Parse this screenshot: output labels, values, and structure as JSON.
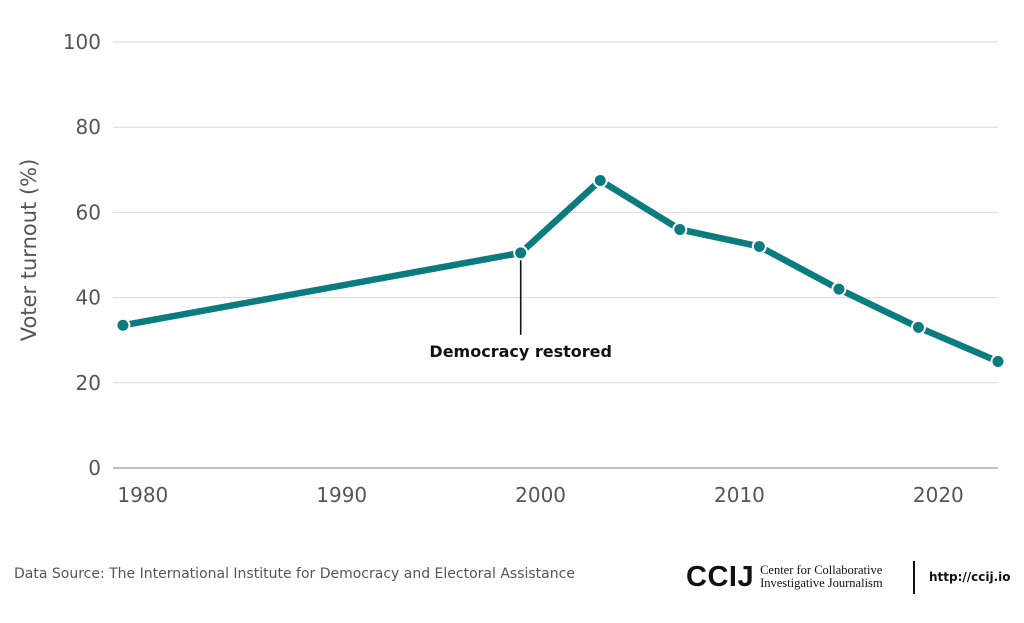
{
  "chart_data": {
    "type": "line",
    "title": "",
    "xlabel": "",
    "ylabel": "Voter turnout (%)",
    "xlim": [
      1978.5,
      2023
    ],
    "ylim": [
      0,
      100
    ],
    "x_ticks": [
      1980,
      1990,
      2000,
      2010,
      2020
    ],
    "y_ticks": [
      0,
      20,
      40,
      60,
      80,
      100
    ],
    "grid": true,
    "series": [
      {
        "color": "#0a7c80",
        "points": [
          {
            "x": 1979,
            "y": 33.5
          },
          {
            "x": 1999,
            "y": 50.5
          },
          {
            "x": 2003,
            "y": 67.5
          },
          {
            "x": 2007,
            "y": 56
          },
          {
            "x": 2011,
            "y": 52
          },
          {
            "x": 2015,
            "y": 42
          },
          {
            "x": 2019,
            "y": 33
          },
          {
            "x": 2023,
            "y": 25
          }
        ]
      }
    ],
    "annotations": [
      {
        "text": "Democracy restored",
        "x": 1999,
        "y": 50.5
      }
    ]
  },
  "footer": {
    "source": "Data Source: The International Institute for Democracy and Electoral Assistance",
    "logo_mark": "CCIJ",
    "logo_line1": "Center for Collaborative",
    "logo_line2": "Investigative Journalism",
    "url": "http://ccij.io"
  }
}
